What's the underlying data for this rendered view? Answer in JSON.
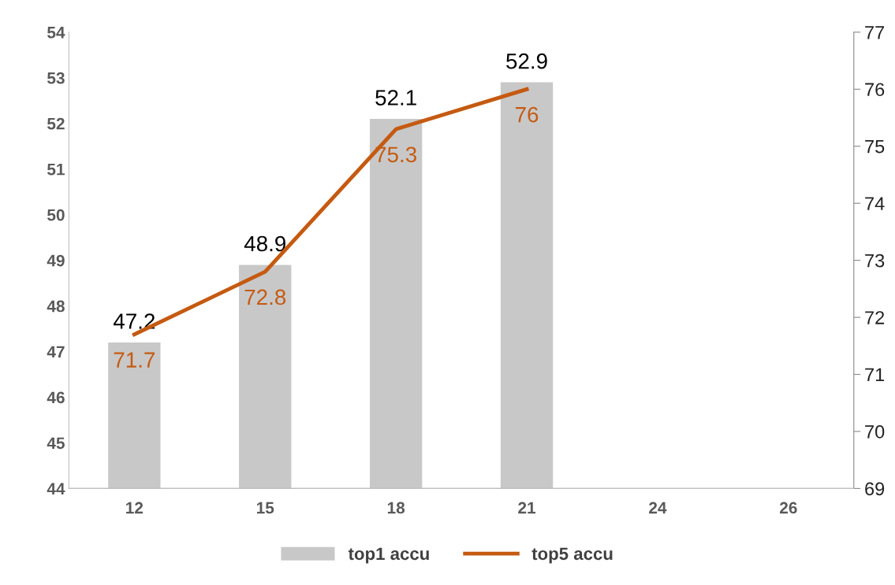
{
  "chart_data": {
    "type": "bar",
    "categories": [
      "12",
      "15",
      "18",
      "21",
      "24",
      "26"
    ],
    "series": [
      {
        "name": "top1 accu",
        "color": "#c8c8c8",
        "values": [
          47.2,
          48.9,
          52.1,
          52.9,
          null,
          null
        ]
      },
      {
        "name": "top5 accu",
        "type": "line",
        "axis": "y2",
        "color": "#c55a11",
        "values": [
          71.7,
          72.8,
          75.3,
          76,
          null,
          null
        ]
      }
    ],
    "ylim": [
      44,
      54
    ],
    "yticks": [
      44,
      45,
      46,
      47,
      48,
      49,
      50,
      51,
      52,
      53,
      54
    ],
    "y2lim": [
      69,
      77
    ],
    "y2ticks": [
      69,
      70,
      71,
      72,
      73,
      74,
      75,
      76,
      77
    ],
    "data_labels": true,
    "legend": "bottom",
    "grid": false,
    "marker": "none",
    "line_style": "solid"
  }
}
